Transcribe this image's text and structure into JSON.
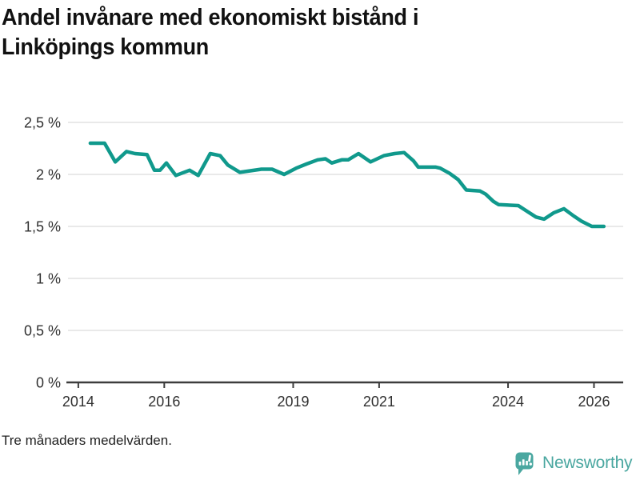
{
  "header": {
    "title_line1": "Andel invånare med ekonomiskt bistånd i",
    "title_line2": "Linköpings kommun"
  },
  "footer": {
    "note": "Tre månaders medelvärden."
  },
  "branding": {
    "name": "Newsworthy",
    "color": "#4aa7a0",
    "icon": "speech-bubble-bar-chart"
  },
  "chart_data": {
    "type": "line",
    "title": "Andel invånare med ekonomiskt bistånd i Linköpings kommun",
    "xlabel": "",
    "ylabel": "",
    "unit": "%",
    "grid": "horizontal",
    "legend": "none",
    "xlim": [
      2013.76,
      2026.68
    ],
    "ylim": [
      0,
      2.5
    ],
    "y_ticks": [
      {
        "value": 2.5,
        "label": "2,5 %"
      },
      {
        "value": 2.0,
        "label": "2 %"
      },
      {
        "value": 1.5,
        "label": "1,5 %"
      },
      {
        "value": 1.0,
        "label": "1 %"
      },
      {
        "value": 0.5,
        "label": "0,5 %"
      },
      {
        "value": 0.0,
        "label": "0 %"
      }
    ],
    "x_ticks": [
      {
        "value": 2014,
        "label": "2014"
      },
      {
        "value": 2016,
        "label": "2016"
      },
      {
        "value": 2019,
        "label": "2019"
      },
      {
        "value": 2021,
        "label": "2021"
      },
      {
        "value": 2024,
        "label": "2024"
      },
      {
        "value": 2026,
        "label": "2026"
      }
    ],
    "series": [
      {
        "name": "Andel invånare med ekonomiskt bistånd, Linköpings kommun",
        "color": "#10998c",
        "points": [
          [
            2014.28,
            2.3
          ],
          [
            2014.61,
            2.3
          ],
          [
            2014.86,
            2.12
          ],
          [
            2015.12,
            2.22
          ],
          [
            2015.32,
            2.2
          ],
          [
            2015.6,
            2.19
          ],
          [
            2015.77,
            2.04
          ],
          [
            2015.9,
            2.04
          ],
          [
            2016.05,
            2.11
          ],
          [
            2016.27,
            1.99
          ],
          [
            2016.59,
            2.04
          ],
          [
            2016.79,
            1.99
          ],
          [
            2017.07,
            2.2
          ],
          [
            2017.3,
            2.18
          ],
          [
            2017.48,
            2.09
          ],
          [
            2017.76,
            2.02
          ],
          [
            2018.26,
            2.05
          ],
          [
            2018.51,
            2.05
          ],
          [
            2018.79,
            2.0
          ],
          [
            2019.07,
            2.06
          ],
          [
            2019.31,
            2.1
          ],
          [
            2019.57,
            2.14
          ],
          [
            2019.75,
            2.15
          ],
          [
            2019.9,
            2.11
          ],
          [
            2020.13,
            2.14
          ],
          [
            2020.28,
            2.14
          ],
          [
            2020.52,
            2.2
          ],
          [
            2020.8,
            2.12
          ],
          [
            2021.11,
            2.18
          ],
          [
            2021.36,
            2.2
          ],
          [
            2021.58,
            2.21
          ],
          [
            2021.8,
            2.13
          ],
          [
            2021.91,
            2.07
          ],
          [
            2022.32,
            2.07
          ],
          [
            2022.42,
            2.06
          ],
          [
            2022.64,
            2.01
          ],
          [
            2022.84,
            1.95
          ],
          [
            2023.03,
            1.85
          ],
          [
            2023.35,
            1.84
          ],
          [
            2023.48,
            1.81
          ],
          [
            2023.66,
            1.74
          ],
          [
            2023.78,
            1.71
          ],
          [
            2024.24,
            1.7
          ],
          [
            2024.46,
            1.64
          ],
          [
            2024.65,
            1.59
          ],
          [
            2024.84,
            1.57
          ],
          [
            2025.06,
            1.63
          ],
          [
            2025.3,
            1.67
          ],
          [
            2025.53,
            1.6
          ],
          [
            2025.71,
            1.55
          ],
          [
            2025.95,
            1.5
          ],
          [
            2026.23,
            1.5
          ]
        ]
      }
    ]
  }
}
